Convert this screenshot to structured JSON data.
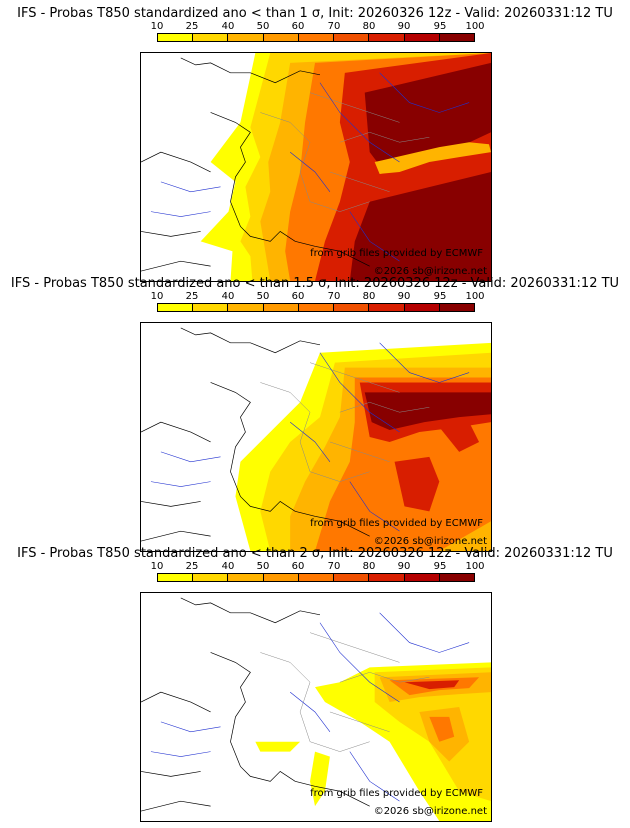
{
  "scale": {
    "labels": [
      "10",
      "25",
      "40",
      "50",
      "60",
      "70",
      "80",
      "90",
      "95",
      "100"
    ],
    "colors": [
      "#ffff00",
      "#ffd800",
      "#ffb400",
      "#ff9a00",
      "#ff7800",
      "#f05000",
      "#d81e00",
      "#b40000",
      "#880000"
    ]
  },
  "panels": [
    {
      "title": "IFS - Probas T850  standardized ano < than 1 σ, Init: 20260326 12z - Valid: 20260331:12 TU",
      "credit_source": "from grib files provided by ECMWF",
      "credit_copyright": "©2026 sb@irizone.net"
    },
    {
      "title": "IFS - Probas T850  standardized ano < than 1.5 σ, Init: 20260326 12z - Valid: 20260331:12 TU",
      "credit_source": "from grib files provided by ECMWF",
      "credit_copyright": "©2026 sb@irizone.net"
    },
    {
      "title": "IFS - Probas T850  standardized ano < than 2 σ, Init: 20260326 12z - Valid: 20260331:12 TU",
      "credit_source": "from grib files provided by ECMWF",
      "credit_copyright": "©2026 sb@irizone.net"
    }
  ]
}
